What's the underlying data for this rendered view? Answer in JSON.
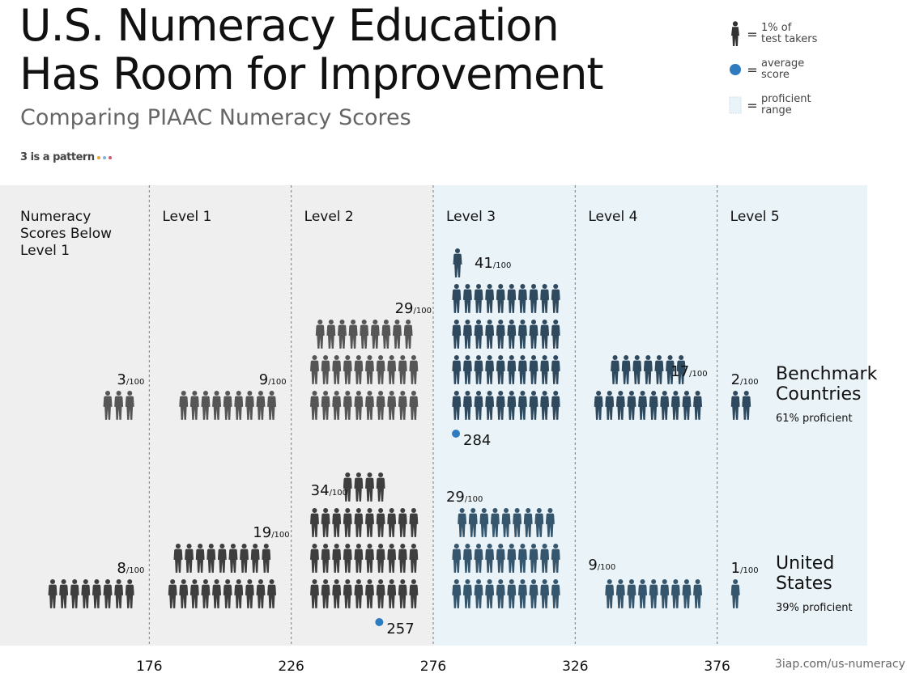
{
  "header": {
    "title": "U.S. Numeracy Education\nHas Room for Improvement",
    "subtitle": "Comparing PIAAC Numeracy Scores",
    "brand": "3 is a pattern",
    "brand_dot_colors": [
      "#e8a33d",
      "#7fb1d9",
      "#c85a6a"
    ]
  },
  "legend": {
    "person": {
      "icon": "person-icon",
      "label": "1% of\ntest takers"
    },
    "average": {
      "icon": "average-dot-icon",
      "label": "average\nscore"
    },
    "proficient": {
      "icon": "proficient-swatch-icon",
      "label": "proficient\nrange"
    }
  },
  "colors": {
    "benchmark": "#565656",
    "us": "#3e3e3e",
    "benchmark_proficient": "#2f4a5e",
    "us_proficient": "#36566d",
    "band_light": "#efefef",
    "band_proficient": "#eaf3f8",
    "average_dot": "#2e7cbf"
  },
  "chart_data": {
    "type": "pictograph",
    "x_ticks": [
      176,
      226,
      276,
      326,
      376
    ],
    "levels": [
      "Numeracy\nScores Below\nLevel 1",
      "Level 1",
      "Level 2",
      "Level 3",
      "Level 4",
      "Level 5"
    ],
    "proficient_from_level_index": 3,
    "series": [
      {
        "name": "Benchmark\nCountries",
        "proficient_label": "61% proficient",
        "values": [
          3,
          9,
          29,
          41,
          17,
          2
        ],
        "value_suffix": "/100",
        "average": 284
      },
      {
        "name": "United\nStates",
        "proficient_label": "39% proficient",
        "values": [
          8,
          19,
          34,
          29,
          9,
          1
        ],
        "value_suffix": "/100",
        "average": 257
      }
    ]
  },
  "footer": {
    "credit": "3iap.com/us-numeracy"
  }
}
